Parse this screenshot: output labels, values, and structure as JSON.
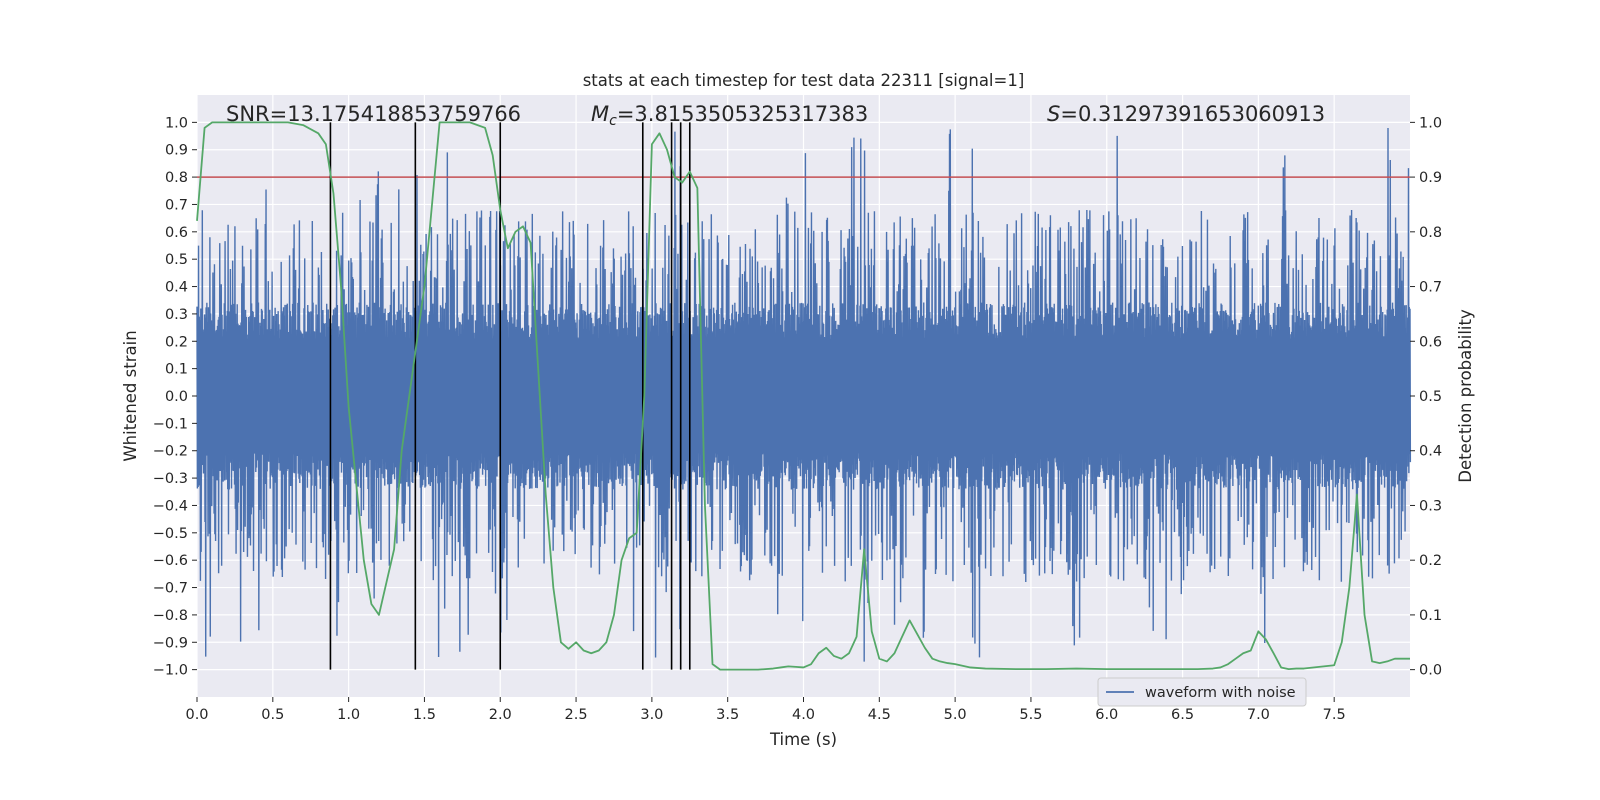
{
  "chart_data": {
    "type": "line",
    "title": "stats at each timestep for test data 22311 [signal=1]",
    "xlabel": "Time (s)",
    "ylabel_left": "Whitened strain",
    "ylabel_right": "Detection probability",
    "xlim": [
      0.0,
      8.0
    ],
    "ylim_left": [
      -1.1,
      1.1
    ],
    "ylim_right": [
      -0.05,
      1.05
    ],
    "x_ticks": [
      0.0,
      0.5,
      1.0,
      1.5,
      2.0,
      2.5,
      3.0,
      3.5,
      4.0,
      4.5,
      5.0,
      5.5,
      6.0,
      6.5,
      7.0,
      7.5
    ],
    "x_tick_labels": [
      "0.0",
      "0.5",
      "1.0",
      "1.5",
      "2.0",
      "2.5",
      "3.0",
      "3.5",
      "4.0",
      "4.5",
      "5.0",
      "5.5",
      "6.0",
      "6.5",
      "7.0",
      "7.5"
    ],
    "y_left_ticks": [
      1.0,
      0.9,
      0.8,
      0.7,
      0.6,
      0.5,
      0.4,
      0.3,
      0.2,
      0.1,
      0.0,
      -0.1,
      -0.2,
      -0.3,
      -0.4,
      -0.5,
      -0.6,
      -0.7,
      -0.8,
      -0.9,
      -1.0
    ],
    "y_left_tick_labels": [
      "1.0",
      "0.9",
      "0.8",
      "0.7",
      "0.6",
      "0.5",
      "0.4",
      "0.3",
      "0.2",
      "0.1",
      "0.0",
      "−0.1",
      "−0.2",
      "−0.3",
      "−0.4",
      "−0.5",
      "−0.6",
      "−0.7",
      "−0.8",
      "−0.9",
      "−1.0"
    ],
    "y_right_ticks": [
      1.0,
      0.9,
      0.8,
      0.7,
      0.6,
      0.5,
      0.4,
      0.3,
      0.2,
      0.1,
      0.0
    ],
    "y_right_tick_labels": [
      "1.0",
      "0.9",
      "0.8",
      "0.7",
      "0.6",
      "0.5",
      "0.4",
      "0.3",
      "0.2",
      "0.1",
      "0.0"
    ],
    "grid": true,
    "stats": {
      "snr": "SNR=13.175418853759766",
      "mc_symbol": "M",
      "mc_subscript": "c",
      "mc_value": "=3.8153505325317383",
      "s_symbol": "S",
      "s_value": "=0.31297391653060913"
    },
    "threshold": {
      "value": 0.9,
      "axis": "right",
      "color": "#c44e52"
    },
    "vertical_markers_s": [
      0.88,
      1.44,
      2.0,
      2.94,
      3.13,
      3.19,
      3.25
    ],
    "waveform": {
      "name": "waveform with noise",
      "color": "#4c72b0",
      "sample_count": 1600,
      "typical_range": [
        -0.38,
        0.38
      ]
    },
    "detection_probability": {
      "name": "detection probability",
      "color": "#55a868",
      "x": [
        0.0,
        0.05,
        0.1,
        0.15,
        0.6,
        0.7,
        0.8,
        0.85,
        0.9,
        0.95,
        1.0,
        1.05,
        1.1,
        1.15,
        1.2,
        1.25,
        1.3,
        1.35,
        1.4,
        1.45,
        1.5,
        1.55,
        1.6,
        1.7,
        1.8,
        1.9,
        1.95,
        2.0,
        2.05,
        2.1,
        2.15,
        2.2,
        2.25,
        2.3,
        2.35,
        2.4,
        2.45,
        2.5,
        2.55,
        2.6,
        2.65,
        2.7,
        2.75,
        2.8,
        2.85,
        2.9,
        2.95,
        3.0,
        3.05,
        3.1,
        3.15,
        3.2,
        3.25,
        3.3,
        3.35,
        3.4,
        3.45,
        3.5,
        3.6,
        3.7,
        3.8,
        3.85,
        3.9,
        3.95,
        4.0,
        4.05,
        4.1,
        4.15,
        4.2,
        4.25,
        4.3,
        4.35,
        4.4,
        4.45,
        4.5,
        4.55,
        4.6,
        4.65,
        4.7,
        4.75,
        4.8,
        4.85,
        4.9,
        4.95,
        5.0,
        5.1,
        5.2,
        5.4,
        5.6,
        5.8,
        6.0,
        6.2,
        6.4,
        6.6,
        6.7,
        6.75,
        6.8,
        6.85,
        6.9,
        6.95,
        7.0,
        7.05,
        7.1,
        7.15,
        7.2,
        7.25,
        7.3,
        7.4,
        7.5,
        7.55,
        7.6,
        7.65,
        7.7,
        7.75,
        7.8,
        7.85,
        7.9,
        7.95,
        8.0
      ],
      "y": [
        0.82,
        0.99,
        1.0,
        1.0,
        1.0,
        0.995,
        0.98,
        0.96,
        0.87,
        0.7,
        0.48,
        0.34,
        0.2,
        0.12,
        0.1,
        0.16,
        0.22,
        0.4,
        0.5,
        0.6,
        0.7,
        0.85,
        1.0,
        1.0,
        1.0,
        0.99,
        0.94,
        0.84,
        0.77,
        0.8,
        0.81,
        0.78,
        0.55,
        0.32,
        0.15,
        0.05,
        0.038,
        0.05,
        0.035,
        0.03,
        0.035,
        0.05,
        0.1,
        0.2,
        0.24,
        0.25,
        0.5,
        0.96,
        0.98,
        0.95,
        0.9,
        0.89,
        0.91,
        0.88,
        0.3,
        0.01,
        0.0,
        0.0,
        0.0,
        0.0,
        0.002,
        0.004,
        0.006,
        0.005,
        0.004,
        0.01,
        0.03,
        0.04,
        0.025,
        0.02,
        0.03,
        0.06,
        0.22,
        0.07,
        0.02,
        0.015,
        0.03,
        0.06,
        0.09,
        0.065,
        0.04,
        0.02,
        0.015,
        0.012,
        0.01,
        0.004,
        0.002,
        0.001,
        0.001,
        0.002,
        0.001,
        0.001,
        0.001,
        0.001,
        0.002,
        0.004,
        0.01,
        0.02,
        0.03,
        0.035,
        0.07,
        0.055,
        0.03,
        0.004,
        0.001,
        0.002,
        0.002,
        0.005,
        0.008,
        0.05,
        0.15,
        0.32,
        0.1,
        0.015,
        0.012,
        0.015,
        0.02,
        0.02,
        0.02
      ]
    },
    "legend": {
      "entries": [
        "waveform with noise"
      ],
      "placement": "lower-right"
    }
  }
}
